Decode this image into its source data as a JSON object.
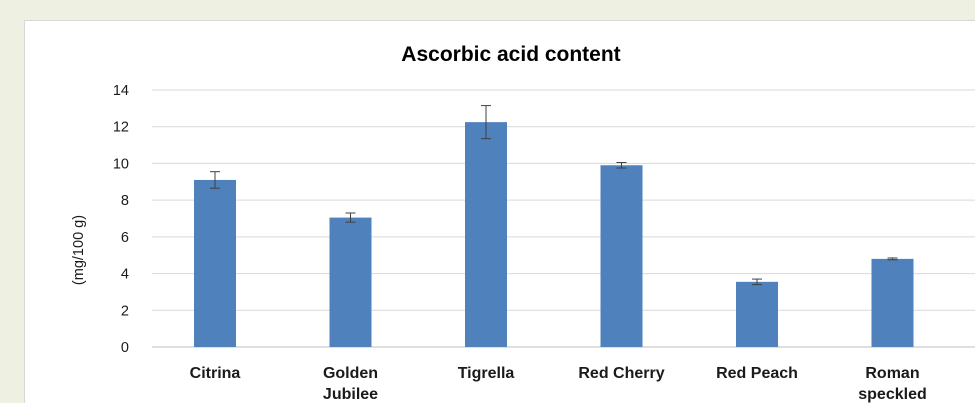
{
  "chart_data": {
    "type": "bar",
    "title": "Ascorbic acid content",
    "ylabel": "(mg/100 g)",
    "xlabel": "",
    "ylim": [
      0,
      14
    ],
    "yticks": [
      0,
      2,
      4,
      6,
      8,
      10,
      12,
      14
    ],
    "grid": true,
    "categories": [
      [
        "Citrina"
      ],
      [
        "Golden",
        "Jubilee"
      ],
      [
        "Tigrella"
      ],
      [
        "Red Cherry"
      ],
      [
        "Red Peach"
      ],
      [
        "Roman",
        "speckled"
      ]
    ],
    "values": [
      9.1,
      7.05,
      12.25,
      9.9,
      3.55,
      4.8
    ],
    "errors": [
      0.45,
      0.25,
      0.9,
      0.15,
      0.15,
      0.05
    ],
    "bar_color": "#4f81bd"
  }
}
